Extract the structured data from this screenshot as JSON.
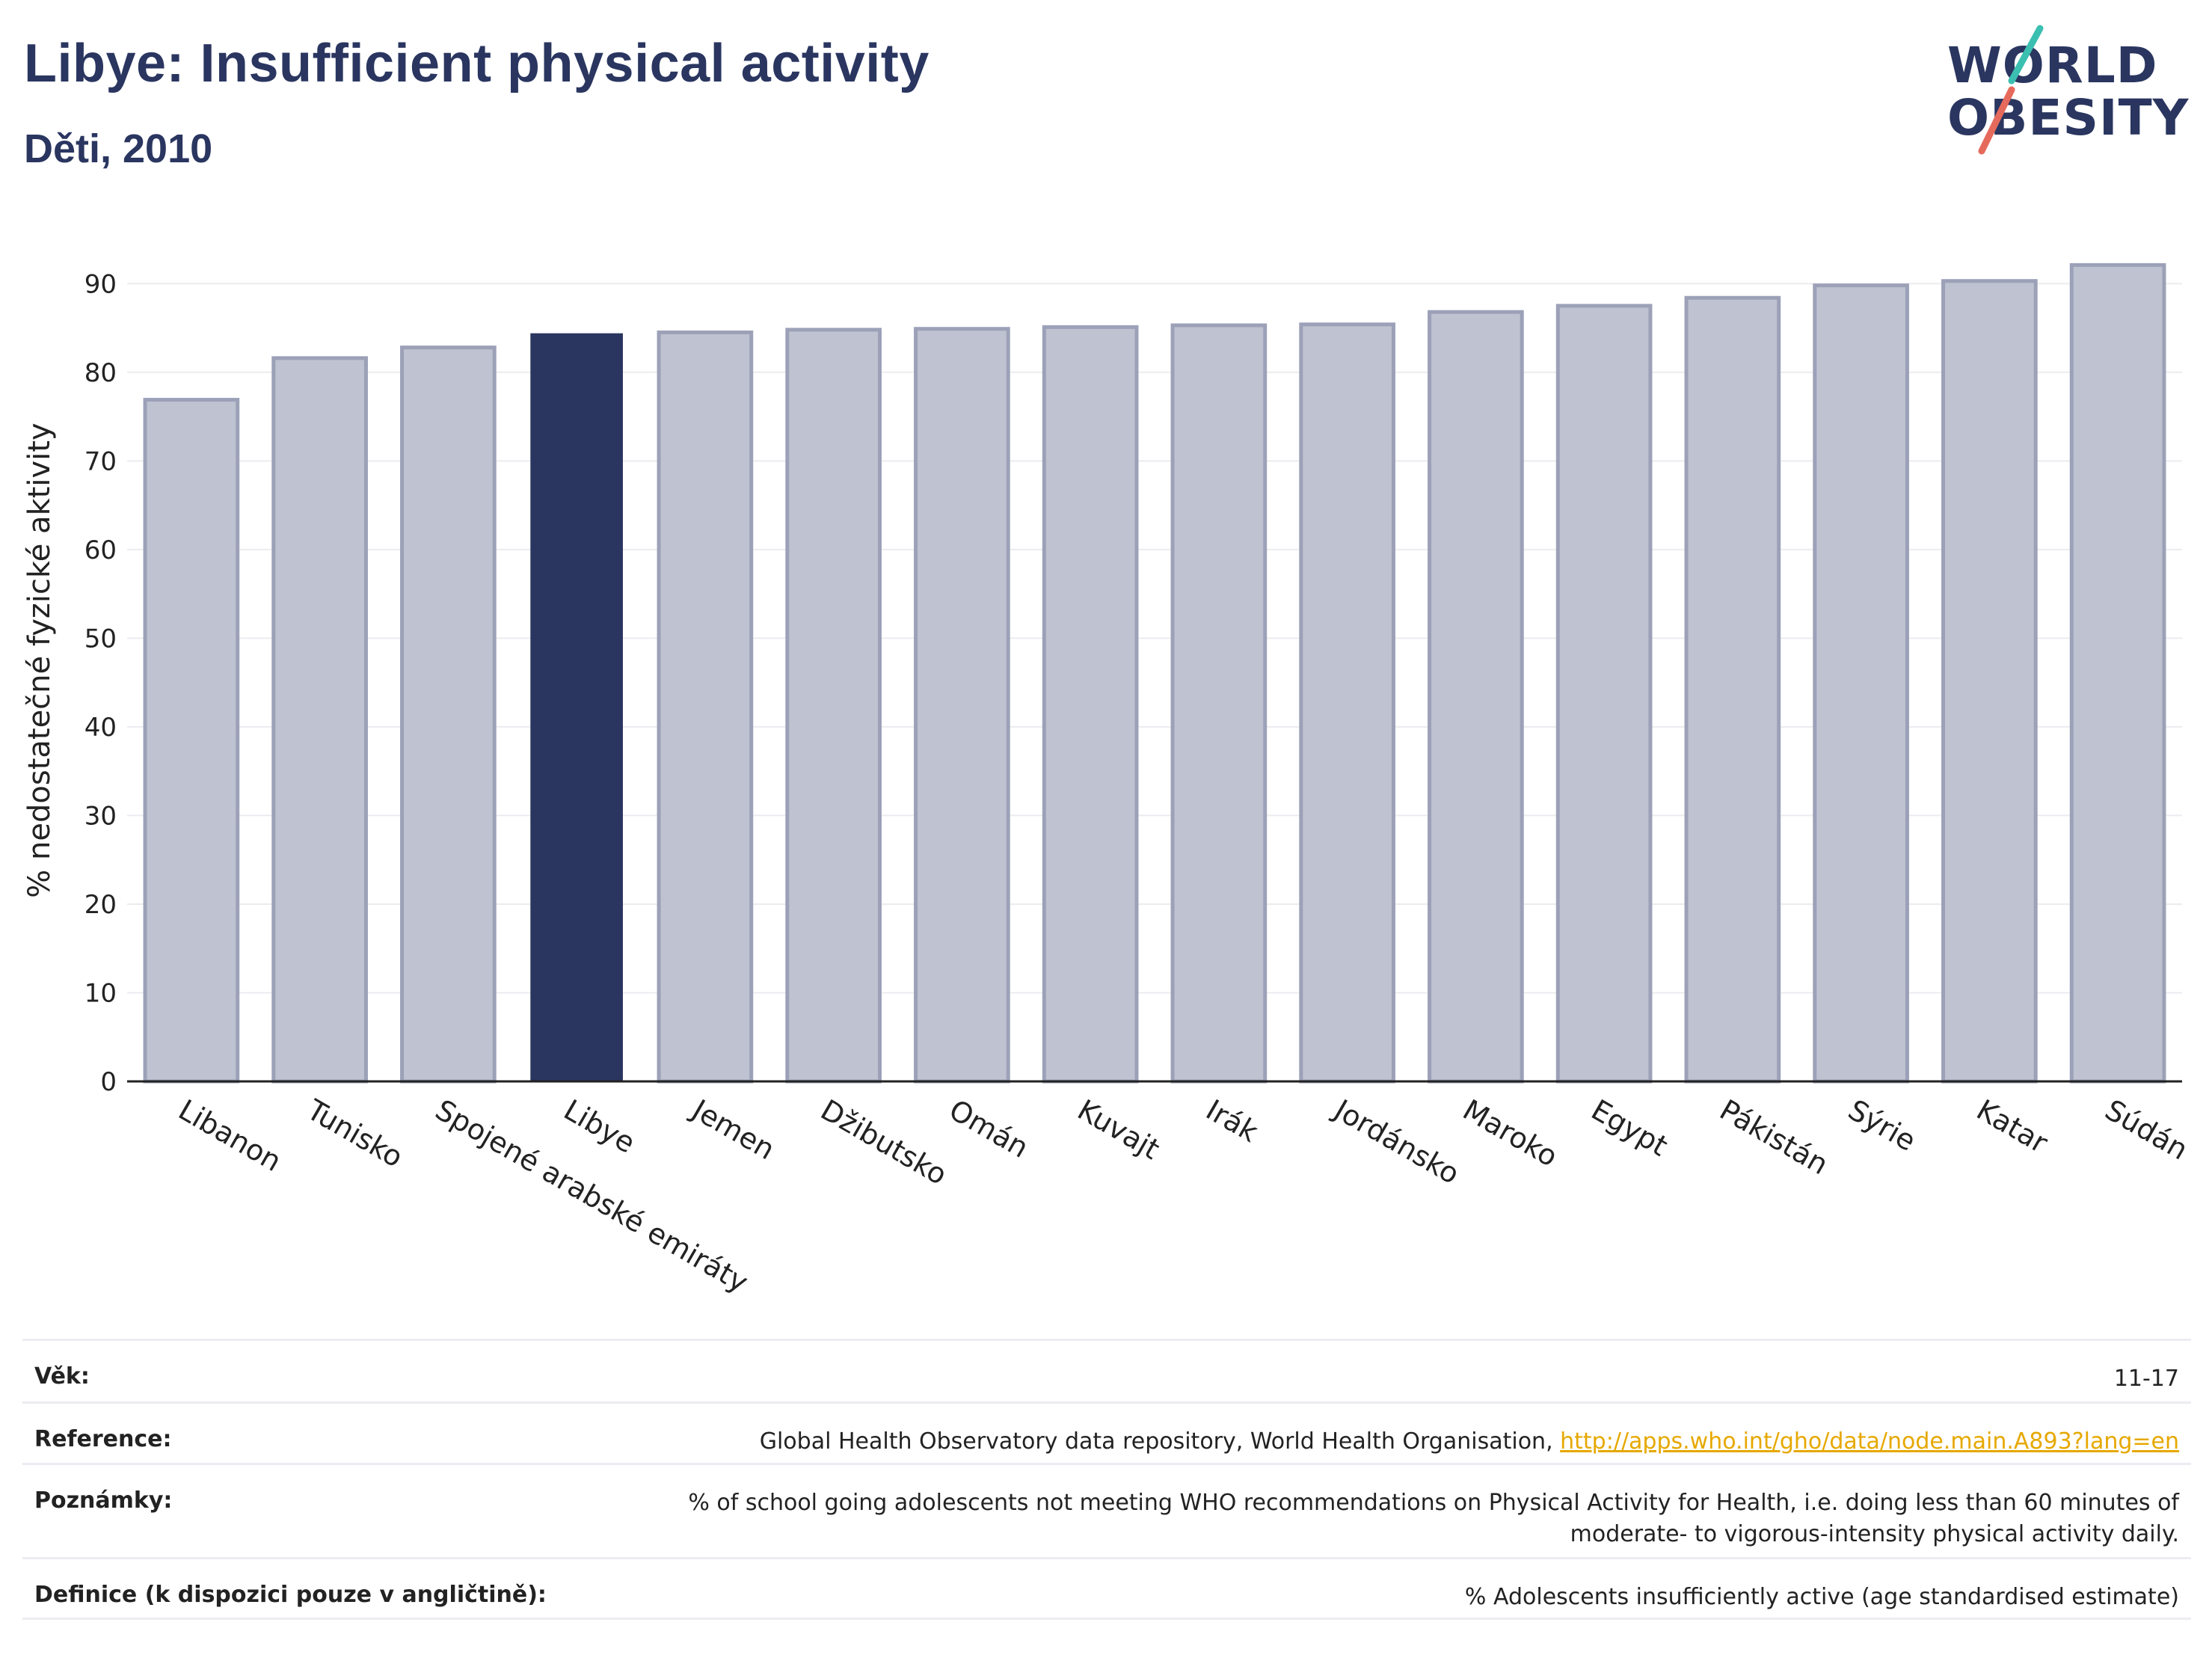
{
  "header": {
    "title": "Libye: Insufficient physical activity",
    "subtitle": "Děti, 2010"
  },
  "logo": {
    "line1": "WORLD",
    "line2": "OBESITY"
  },
  "colors": {
    "highlight": "#2a3660",
    "bar_fill": "#bfc2d0",
    "bar_stroke": "#9ca1b8",
    "grid": "#ececf0",
    "link": "#e6a800",
    "logo_teal": "#3bbfb0",
    "logo_coral": "#e56a5c"
  },
  "chart_data": {
    "type": "bar",
    "title": "Libye: Insufficient physical activity",
    "subtitle": "Děti, 2010",
    "xlabel": "",
    "ylabel": "% nedostatečné fyzické aktivity",
    "ylim": [
      0,
      95
    ],
    "yticks": [
      0,
      10,
      20,
      30,
      40,
      50,
      60,
      70,
      80,
      90
    ],
    "grid": true,
    "highlight": "Libye",
    "categories": [
      "Libanon",
      "Tunisko",
      "Spojené arabské emiráty",
      "Libye",
      "Jemen",
      "Džibutsko",
      "Omán",
      "Kuvajt",
      "Irák",
      "Jordánsko",
      "Maroko",
      "Egypt",
      "Pákistán",
      "Sýrie",
      "Katar",
      "Súdán"
    ],
    "values": [
      76.9,
      81.6,
      82.8,
      84.4,
      84.5,
      84.8,
      84.9,
      85.1,
      85.3,
      85.4,
      86.8,
      87.5,
      88.4,
      89.8,
      90.3,
      92.1
    ]
  },
  "meta": [
    {
      "key": "Věk:",
      "value": "11-17"
    },
    {
      "key": "Reference:",
      "value": "Global Health Observatory data repository, World Health Organisation, ",
      "link": "http://apps.who.int/gho/data/node.main.A893?lang=en"
    },
    {
      "key": "Poznámky:",
      "value": "% of school going adolescents not meeting WHO recommendations on Physical Activity for Health, i.e. doing less than 60 minutes of moderate- to vigorous-intensity physical activity daily."
    },
    {
      "key": "Definice (k dispozici pouze v angličtině):",
      "value": "% Adolescents insufficiently active (age standardised estimate)"
    }
  ]
}
